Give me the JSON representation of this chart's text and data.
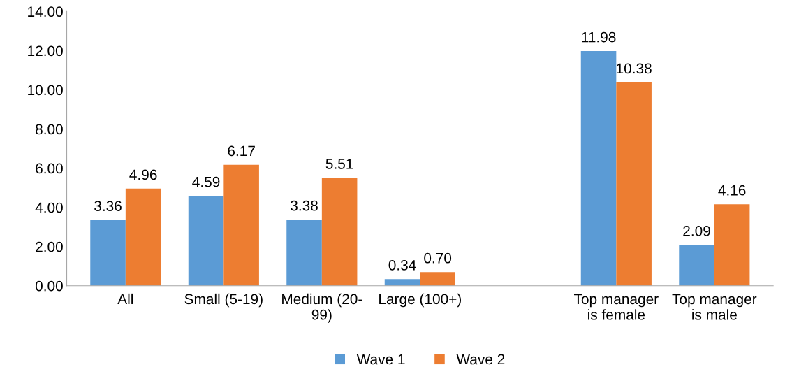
{
  "chart_data": {
    "type": "bar",
    "categories": [
      "All",
      "Small (5-19)",
      "Medium (20-99)",
      "Large (100+)",
      null,
      "Top manager is female",
      "Top manager is male"
    ],
    "series": [
      {
        "name": "Wave 1",
        "color": "#5b9bd5",
        "values": [
          3.36,
          4.59,
          3.38,
          0.34,
          null,
          11.98,
          2.09
        ],
        "value_labels": [
          "3.36",
          "4.59",
          "3.38",
          "0.34",
          null,
          "11.98",
          "2.09"
        ]
      },
      {
        "name": "Wave 2",
        "color": "#ed7d31",
        "values": [
          4.96,
          6.17,
          5.51,
          0.7,
          null,
          10.38,
          4.16
        ],
        "value_labels": [
          "4.96",
          "6.17",
          "5.51",
          "0.70",
          null,
          "10.38",
          "4.16"
        ]
      }
    ],
    "ylim": [
      0,
      14
    ],
    "yticks": [
      {
        "value": 0,
        "label": "0.00"
      },
      {
        "value": 2,
        "label": "2.00"
      },
      {
        "value": 4,
        "label": "4.00"
      },
      {
        "value": 6,
        "label": "6.00"
      },
      {
        "value": 8,
        "label": "8.00"
      },
      {
        "value": 10,
        "label": "10.00"
      },
      {
        "value": 12,
        "label": "12.00"
      },
      {
        "value": 14,
        "label": "14.00"
      }
    ],
    "grid": false,
    "legend": "bottom"
  }
}
